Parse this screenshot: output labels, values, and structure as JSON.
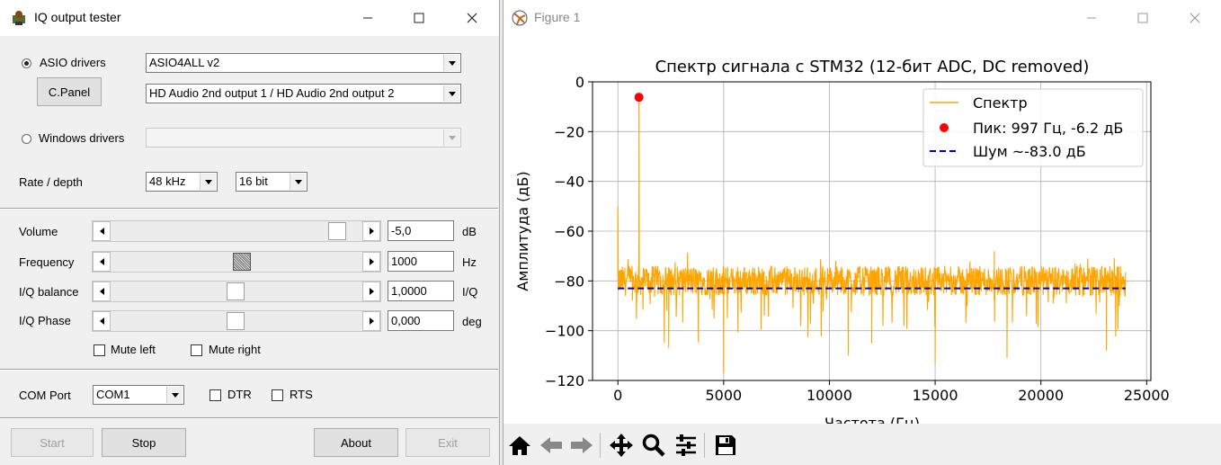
{
  "left_window": {
    "title": "IQ output tester",
    "asio_label": "ASIO drivers",
    "asio_driver": "ASIO4ALL v2",
    "cpanel_label": "C.Panel",
    "asio_output": "HD Audio 2nd output 1 / HD Audio 2nd output 2",
    "windows_label": "Windows drivers",
    "windows_driver": "",
    "rate_label": "Rate / depth",
    "rate": "48 kHz",
    "depth": "16 bit",
    "controls": [
      {
        "label": "Volume",
        "value": "-5,0",
        "unit": "dB",
        "position": 0.92
      },
      {
        "label": "Frequency",
        "value": "1000",
        "unit": "Hz",
        "position": 0.52
      },
      {
        "label": "I/Q balance",
        "value": "1,0000",
        "unit": "I/Q",
        "position": 0.5
      },
      {
        "label": "I/Q Phase",
        "value": "0,000",
        "unit": "deg",
        "position": 0.5
      }
    ],
    "mute_left": "Mute left",
    "mute_right": "Mute right",
    "com_label": "COM Port",
    "com_port": "COM1",
    "dtr_label": "DTR",
    "rts_label": "RTS",
    "buttons": {
      "start": "Start",
      "stop": "Stop",
      "about": "About",
      "exit": "Exit"
    }
  },
  "right_window": {
    "title": "Figure 1"
  },
  "chart_data": {
    "type": "line",
    "title": "Спектр сигнала с STM32 (12-бит ADC, DC removed)",
    "xlabel": "Частота (Гц)",
    "ylabel": "Амплитуда (дБ)",
    "xlim": [
      -1200,
      25200
    ],
    "ylim": [
      -120,
      0
    ],
    "xticks": [
      0,
      5000,
      10000,
      15000,
      20000,
      25000
    ],
    "yticks": [
      0,
      -20,
      -40,
      -60,
      -80,
      -100,
      -120
    ],
    "grid": true,
    "legend_position": "top-right",
    "colors": {
      "spectrum": "#ffa500",
      "peak": "#ff0000",
      "noise": "#0000cc"
    },
    "series": [
      {
        "name": "Спектр",
        "kind": "line",
        "x_range": [
          0,
          24000
        ],
        "baseline_db": -80,
        "fixed_points": [
          [
            0,
            -50
          ],
          [
            100,
            -80
          ],
          [
            700,
            -81
          ],
          [
            997,
            -6.2
          ],
          [
            1300,
            -80
          ],
          [
            5000,
            -117
          ],
          [
            2400,
            -107
          ],
          [
            10900,
            -110
          ],
          [
            15000,
            -113
          ],
          [
            17800,
            -68
          ],
          [
            12000,
            -105
          ],
          [
            18400,
            -111
          ],
          [
            23100,
            -108
          ]
        ]
      },
      {
        "name": "Пик: 997 Гц, -6.2 дБ",
        "kind": "point",
        "x": 997,
        "y": -6.2
      },
      {
        "name": "Шум ~-83.0 дБ",
        "kind": "dashed",
        "x": [
          0,
          24000
        ],
        "y": -83.0
      }
    ]
  }
}
